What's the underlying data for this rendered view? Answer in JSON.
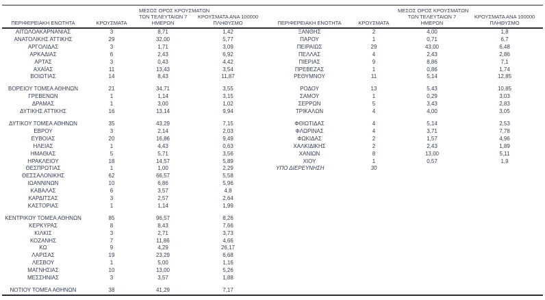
{
  "table": {
    "header": {
      "region": "ΠΕΡΙΦΕΡΕΙΑΚΗ ΕΝΟΤΗΤΑ",
      "cases": "ΚΡΟΥΣΜΑΤΑ",
      "avg7": "ΜΕΣΟΣ ΟΡΟΣ ΚΡΟΥΣΜΑΤΩΝ\nΤΩΝ ΤΕΛΕΥΤΑΙΩΝ 7\nΗΜΕΡΩΝ",
      "per100k": "ΚΡΟΥΣΜΑΤΑ ΑΝΑ 100000\nΠΛΗΘΥΣΜΟ"
    },
    "columns_left": [
      "region",
      "cases",
      "avg7",
      "per100k"
    ],
    "columns_right": [
      "region",
      "cases",
      "avg7",
      "per100k"
    ],
    "rows": [
      {
        "left": [
          "ΑΙΤΩΛΟΑΚΑΡΝΑΝΙΑΣ",
          "3",
          "8,71",
          "1,42"
        ],
        "right": [
          "ΞΑΝΘΗΣ",
          "2",
          "4,00",
          "1,8"
        ]
      },
      {
        "left": [
          "ΑΝΑΤΟΛΙΚΗΣ ΑΤΤΙΚΗΣ",
          "29",
          "32,00",
          "5,77"
        ],
        "right": [
          "ΠΑΡΟΥ",
          "1",
          "0,71",
          "6,7"
        ]
      },
      {
        "left": [
          "ΑΡΓΟΛΙΔΑΣ",
          "3",
          "1,71",
          "3,09"
        ],
        "right": [
          "ΠΕΙΡΑΙΩΣ",
          "29",
          "43,00",
          "6,48"
        ]
      },
      {
        "left": [
          "ΑΡΚΑΔΙΑΣ",
          "6",
          "2,43",
          "6,92"
        ],
        "right": [
          "ΠΕΛΛΑΣ",
          "4",
          "2,43",
          "2,86"
        ]
      },
      {
        "left": [
          "ΑΡΤΑΣ",
          "3",
          "0,43",
          "4,42"
        ],
        "right": [
          "ΠΙΕΡΙΑΣ",
          "9",
          "8,86",
          "7,1"
        ]
      },
      {
        "left": [
          "ΑΧΑΪΑΣ",
          "11",
          "13,43",
          "3,54"
        ],
        "right": [
          "ΠΡΕΒΕΖΑΣ",
          "1",
          "0,86",
          "1,74"
        ]
      },
      {
        "left": [
          "ΒΟΙΩΤΙΑΣ",
          "14",
          "8,43",
          "11,87"
        ],
        "right": [
          "ΡΕΘΥΜΝΟΥ",
          "11",
          "5,14",
          "12,85"
        ]
      },
      {
        "spacer": true
      },
      {
        "left": [
          "ΒΟΡΕΙΟΥ ΤΟΜΕΑ ΑΘΗΝΩΝ",
          "21",
          "34,71",
          "3,55"
        ],
        "right": [
          "ΡΟΔΟΥ",
          "13",
          "5,43",
          "10,85"
        ]
      },
      {
        "left": [
          "ΓΡΕΒΕΝΩΝ",
          "1",
          "1,14",
          "3,15"
        ],
        "right": [
          "ΣΑΜΟΥ",
          "1",
          "0,29",
          "3,03"
        ]
      },
      {
        "left": [
          "ΔΡΑΜΑΣ",
          "1",
          "3,00",
          "1,02"
        ],
        "right": [
          "ΣΕΡΡΩΝ",
          "5",
          "3,43",
          "2,83"
        ]
      },
      {
        "left": [
          "ΔΥΤΙΚΗΣ ΑΤΤΙΚΗΣ",
          "16",
          "13,14",
          "9,94"
        ],
        "right": [
          "ΤΡΙΚΑΛΩΝ",
          "4",
          "4,00",
          "3,05"
        ]
      },
      {
        "spacer": true
      },
      {
        "left": [
          "ΔΥΤΙΚΟΥ ΤΟΜΕΑ ΑΘΗΝΩΝ",
          "35",
          "43,29",
          "7,15"
        ],
        "right": [
          "ΦΘΙΩΤΙΔΑΣ",
          "4",
          "5,14",
          "2,53"
        ]
      },
      {
        "left": [
          "ΕΒΡΟΥ",
          "3",
          "2,14",
          "2,03"
        ],
        "right": [
          "ΦΛΩΡΙΝΑΣ",
          "4",
          "3,71",
          "7,78"
        ]
      },
      {
        "left": [
          "ΕΥΒΟΙΑΣ",
          "20",
          "16,86",
          "9,49"
        ],
        "right": [
          "ΦΩΚΙΔΑΣ",
          "2",
          "1,57",
          "4,96"
        ]
      },
      {
        "left": [
          "ΗΛΕΙΑΣ",
          "1",
          "4,43",
          "0,63"
        ],
        "right": [
          "ΧΑΛΚΙΔΙΚΗΣ",
          "2",
          "2,43",
          "1,89"
        ]
      },
      {
        "left": [
          "ΗΜΑΘΙΑΣ",
          "5",
          "5,71",
          "3,56"
        ],
        "right": [
          "ΧΑΝΙΩΝ",
          "8",
          "13,00",
          "5,11"
        ]
      },
      {
        "left": [
          "ΗΡΑΚΛΕΙΟΥ",
          "18",
          "14,57",
          "5,89"
        ],
        "right": [
          "ΧΙΟΥ",
          "1",
          "0,57",
          "1,9"
        ]
      },
      {
        "left": [
          "ΘΕΣΠΡΩΤΙΑΣ",
          "1",
          "1,00",
          "2,29"
        ],
        "right": [
          "ΥΠΟ ΔΙΕΡΕΥΝΗΣΗ",
          "30",
          "",
          ""
        ],
        "right_italic": true,
        "right_name_left_aligned": true
      },
      {
        "left": [
          "ΘΕΣΣΑΛΟΝΙΚΗΣ",
          "62",
          "66,57",
          "5,58"
        ],
        "right": [
          "",
          "",
          "",
          ""
        ]
      },
      {
        "left": [
          "ΙΩΑΝΝΙΝΩΝ",
          "10",
          "6,86",
          "5,96"
        ],
        "right": [
          "",
          "",
          "",
          ""
        ]
      },
      {
        "left": [
          "ΚΑΒΑΛΑΣ",
          "6",
          "3,57",
          "4,8"
        ],
        "right": [
          "",
          "",
          "",
          ""
        ]
      },
      {
        "left": [
          "ΚΑΡΔΙΤΣΑΣ",
          "3",
          "2,57",
          "2,64"
        ],
        "right": [
          "",
          "",
          "",
          ""
        ]
      },
      {
        "left": [
          "ΚΑΣΤΟΡΙΑΣ",
          "1",
          "1,14",
          "1,99"
        ],
        "right": [
          "",
          "",
          "",
          ""
        ]
      },
      {
        "spacer": true
      },
      {
        "left": [
          "ΚΕΝΤΡΙΚΟΥ ΤΟΜΕΑ ΑΘΗΝΩΝ",
          "85",
          "96,57",
          "8,26"
        ],
        "right": [
          "",
          "",
          "",
          ""
        ]
      },
      {
        "left": [
          "ΚΕΡΚΥΡΑΣ",
          "8",
          "8,43",
          "7,66"
        ],
        "right": [
          "",
          "",
          "",
          ""
        ]
      },
      {
        "left": [
          "ΚΙΛΚΙΣ",
          "3",
          "2,71",
          "3,73"
        ],
        "right": [
          "",
          "",
          "",
          ""
        ]
      },
      {
        "left": [
          "ΚΟΖΑΝΗΣ",
          "7",
          "11,86",
          "4,66"
        ],
        "right": [
          "",
          "",
          "",
          ""
        ]
      },
      {
        "left": [
          "ΚΩ",
          "9",
          "4,29",
          "26,17"
        ],
        "right": [
          "",
          "",
          "",
          ""
        ]
      },
      {
        "left": [
          "ΛΑΡΙΣΑΣ",
          "19",
          "23,29",
          "6,68"
        ],
        "right": [
          "",
          "",
          "",
          ""
        ]
      },
      {
        "left": [
          "ΛΕΣΒΟΥ",
          "1",
          "5,00",
          "1,16"
        ],
        "right": [
          "",
          "",
          "",
          ""
        ]
      },
      {
        "left": [
          "ΜΑΓΝΗΣΙΑΣ",
          "10",
          "13,00",
          "5,26"
        ],
        "right": [
          "",
          "",
          "",
          ""
        ]
      },
      {
        "left": [
          "ΜΕΣΣΗΝΙΑΣ",
          "3",
          "3,57",
          "1,88"
        ],
        "right": [
          "",
          "",
          "",
          ""
        ]
      },
      {
        "spacer": true
      },
      {
        "left": [
          "ΝΟΤΙΟΥ ΤΟΜΕΑ ΑΘΗΝΩΝ",
          "38",
          "41,29",
          "7,17"
        ],
        "right": [
          "",
          "",
          "",
          ""
        ]
      }
    ],
    "text_color": "#333b4e",
    "rule_color": "#2b2b33"
  }
}
